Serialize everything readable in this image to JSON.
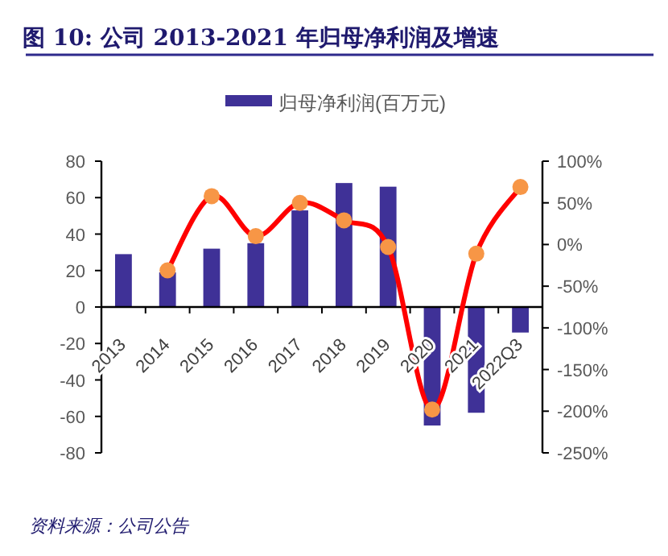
{
  "chart_data": {
    "type": "bar",
    "title": "图 10:  公司 2013-2021 年归母净利润及增速",
    "categories": [
      "2013",
      "2014",
      "2015",
      "2016",
      "2017",
      "2018",
      "2019",
      "2020",
      "2021",
      "2022Q3"
    ],
    "series": [
      {
        "name": "归母净利润(百万元)",
        "color": "#3f3197",
        "values": [
          29,
          19,
          32,
          35,
          53,
          68,
          66,
          -65,
          -58,
          -14
        ]
      },
      {
        "type": "line",
        "axis": "y2",
        "color": "#ff0000",
        "colors": [
          null,
          "#f79646",
          "#f79646",
          "#f79646",
          "#f79646",
          "#f79646",
          "#f79646",
          "#f79646",
          "#f79646",
          "#f79646"
        ],
        "marker": "circle",
        "values": [
          null,
          -31,
          58,
          10,
          50,
          29,
          -3,
          -198,
          -11,
          69
        ]
      }
    ],
    "ylim": [
      -80,
      80
    ],
    "yticks": [
      -80,
      -60,
      -40,
      -20,
      0,
      20,
      40,
      60,
      80
    ],
    "y2lim": [
      -250,
      100
    ],
    "y2ticks": [
      {
        "value": -250,
        "label": "-250%"
      },
      {
        "value": -200,
        "label": "-200%"
      },
      {
        "value": -150,
        "label": "-150%"
      },
      {
        "value": -100,
        "label": "-100%"
      },
      {
        "value": -50,
        "label": "-50%"
      },
      {
        "value": 0,
        "label": "0%"
      },
      {
        "value": 50,
        "label": "50%"
      },
      {
        "value": 100,
        "label": "100%"
      }
    ],
    "legend": "top",
    "annotations": [
      "资料来源：公司公告"
    ]
  }
}
